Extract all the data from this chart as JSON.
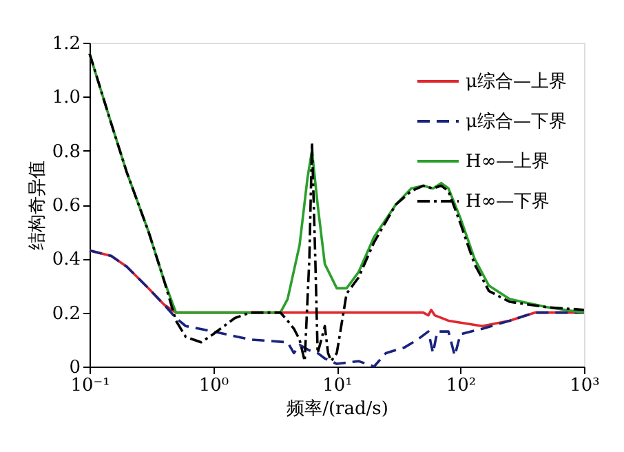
{
  "chart_data": {
    "type": "line",
    "xlabel": "频率/(rad/s)",
    "ylabel": "结构奇异值",
    "log": "x",
    "grid": false,
    "legend": "top right",
    "marker": "none",
    "xlim": [
      0.1,
      1000
    ],
    "xticks": [
      {
        "value": 0.1,
        "label": "10⁻¹"
      },
      {
        "value": 1,
        "label": "10⁰"
      },
      {
        "value": 10,
        "label": "10¹"
      },
      {
        "value": 100,
        "label": "10²"
      },
      {
        "value": 1000,
        "label": "10³"
      }
    ],
    "ylim": [
      0,
      1.2
    ],
    "yticks": [
      0,
      0.2,
      0.4,
      0.6,
      0.8,
      {
        "value": 1,
        "label": "1.0"
      },
      1.2
    ],
    "series": [
      {
        "name": "μ综合—上界",
        "color": "#e0282e",
        "line_style": "solid",
        "x": [
          0.1,
          0.15,
          0.2,
          0.3,
          0.4,
          0.5,
          10,
          50,
          55,
          58,
          62,
          80,
          150,
          250,
          400,
          1000
        ],
        "values": [
          0.43,
          0.41,
          0.37,
          0.29,
          0.23,
          0.2,
          0.2,
          0.2,
          0.19,
          0.21,
          0.19,
          0.17,
          0.15,
          0.17,
          0.2,
          0.2
        ]
      },
      {
        "name": "μ综合—下界",
        "color": "#1a237e",
        "line_style": "dashed",
        "x": [
          0.1,
          0.15,
          0.2,
          0.3,
          0.4,
          0.5,
          0.6,
          1,
          2,
          4,
          4.5,
          5,
          6,
          7,
          8,
          10,
          15,
          20,
          25,
          35,
          45,
          55,
          60,
          65,
          80,
          90,
          100,
          150,
          250,
          400,
          1000
        ],
        "values": [
          0.43,
          0.41,
          0.37,
          0.29,
          0.23,
          0.18,
          0.15,
          0.13,
          0.1,
          0.09,
          0.05,
          0.08,
          0.06,
          0.05,
          0.03,
          0.01,
          0.02,
          0.0,
          0.05,
          0.07,
          0.1,
          0.13,
          0.05,
          0.13,
          0.13,
          0.04,
          0.12,
          0.14,
          0.17,
          0.2,
          0.2
        ]
      },
      {
        "name": "H∞—上界",
        "color": "#2ca02c",
        "line_style": "solid",
        "x": [
          0.1,
          0.15,
          0.2,
          0.3,
          0.4,
          0.5,
          1,
          3.5,
          4,
          5,
          5.8,
          6.3,
          7,
          8,
          10,
          12,
          15,
          20,
          30,
          40,
          50,
          60,
          70,
          80,
          100,
          130,
          170,
          250,
          500,
          1000
        ],
        "values": [
          1.16,
          0.9,
          0.72,
          0.5,
          0.32,
          0.2,
          0.2,
          0.2,
          0.25,
          0.45,
          0.7,
          0.8,
          0.6,
          0.38,
          0.29,
          0.29,
          0.35,
          0.48,
          0.6,
          0.66,
          0.67,
          0.66,
          0.68,
          0.66,
          0.55,
          0.4,
          0.3,
          0.25,
          0.22,
          0.2
        ]
      },
      {
        "name": "H∞—下界",
        "color": "#000000",
        "line_style": "dashdot",
        "x": [
          0.1,
          0.15,
          0.2,
          0.3,
          0.4,
          0.5,
          0.6,
          0.8,
          1,
          1.5,
          2,
          3.5,
          4,
          4.5,
          5,
          5.5,
          6,
          6.3,
          6.7,
          7,
          7.5,
          8,
          8.5,
          9,
          10,
          12,
          15,
          20,
          30,
          40,
          50,
          60,
          70,
          80,
          100,
          130,
          170,
          250,
          500,
          1000
        ],
        "values": [
          1.16,
          0.9,
          0.72,
          0.5,
          0.32,
          0.17,
          0.11,
          0.09,
          0.12,
          0.18,
          0.2,
          0.2,
          0.17,
          0.14,
          0.1,
          0.02,
          0.4,
          0.83,
          0.4,
          0.05,
          0.1,
          0.15,
          0.05,
          0.02,
          0.05,
          0.27,
          0.33,
          0.46,
          0.6,
          0.65,
          0.67,
          0.66,
          0.67,
          0.65,
          0.53,
          0.38,
          0.28,
          0.24,
          0.22,
          0.21
        ]
      }
    ]
  }
}
